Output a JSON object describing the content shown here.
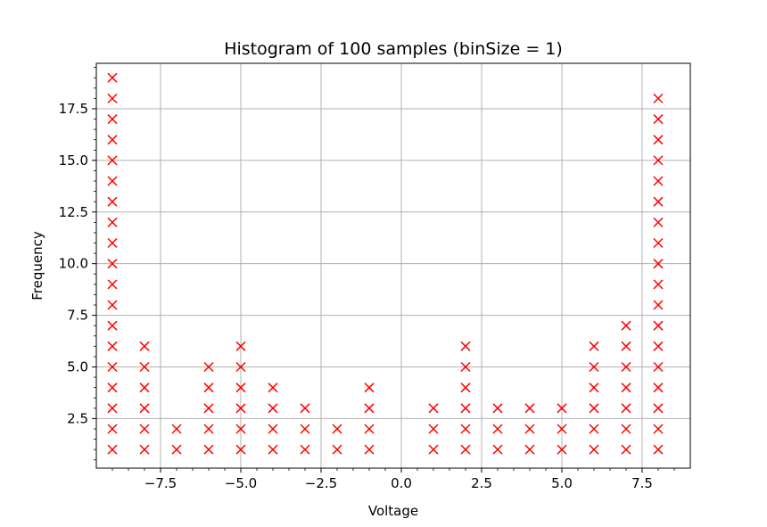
{
  "chart_data": {
    "type": "scatter",
    "title": "Histogram of 100 samples (binSize = 1)",
    "xlabel": "Voltage",
    "ylabel": "Frequency",
    "xlim": [
      -9.5,
      9.0
    ],
    "ylim": [
      0.1,
      19.7
    ],
    "grid": true,
    "marker": "x",
    "marker_color": "#ff0000",
    "xticks": [
      -7.5,
      -5.0,
      -2.5,
      0.0,
      2.5,
      5.0,
      7.5
    ],
    "xtick_labels": [
      "−7.5",
      "−5.0",
      "−2.5",
      "0.0",
      "2.5",
      "5.0",
      "7.5"
    ],
    "yticks": [
      2.5,
      5.0,
      7.5,
      10.0,
      12.5,
      15.0,
      17.5
    ],
    "ytick_labels": [
      "2.5",
      "5.0",
      "7.5",
      "10.0",
      "12.5",
      "15.0",
      "17.5"
    ],
    "bins": [
      {
        "x": -9,
        "count": 19
      },
      {
        "x": -8,
        "count": 6
      },
      {
        "x": -7,
        "count": 2
      },
      {
        "x": -6,
        "count": 5
      },
      {
        "x": -5,
        "count": 6
      },
      {
        "x": -4,
        "count": 4
      },
      {
        "x": -3,
        "count": 3
      },
      {
        "x": -2,
        "count": 2
      },
      {
        "x": -1,
        "count": 4
      },
      {
        "x": 1,
        "count": 3
      },
      {
        "x": 2,
        "count": 6
      },
      {
        "x": 3,
        "count": 3
      },
      {
        "x": 4,
        "count": 3
      },
      {
        "x": 5,
        "count": 3
      },
      {
        "x": 6,
        "count": 6
      },
      {
        "x": 7,
        "count": 7
      },
      {
        "x": 8,
        "count": 18
      }
    ]
  }
}
